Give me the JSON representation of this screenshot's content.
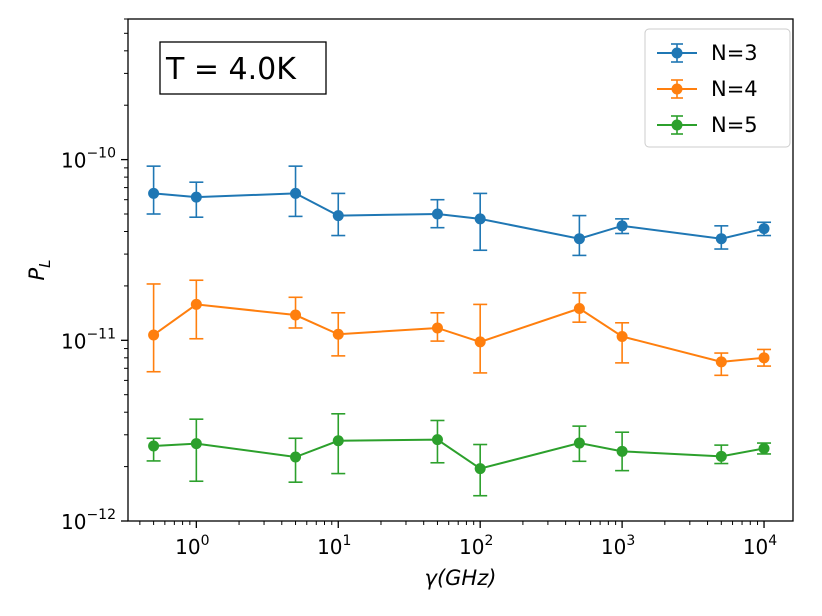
{
  "chart_data": {
    "type": "line",
    "title": "",
    "annotation": "T = 4.0K",
    "xlabel": "γ(GHz)",
    "ylabel": "P_L",
    "xscale": "log",
    "yscale": "log",
    "xlim": [
      0.33,
      16000
    ],
    "ylim": [
      1e-12,
      6e-10
    ],
    "x_ticks": [
      {
        "value": 1,
        "base": "10",
        "exp": "0"
      },
      {
        "value": 10,
        "base": "10",
        "exp": "1"
      },
      {
        "value": 100,
        "base": "10",
        "exp": "2"
      },
      {
        "value": 1000,
        "base": "10",
        "exp": "3"
      },
      {
        "value": 10000,
        "base": "10",
        "exp": "4"
      }
    ],
    "y_ticks": [
      {
        "value": 1e-12,
        "base": "10",
        "exp": "−12"
      },
      {
        "value": 1e-11,
        "base": "10",
        "exp": "−11"
      },
      {
        "value": 1e-10,
        "base": "10",
        "exp": "−10"
      }
    ],
    "legend_position": "top-right",
    "x": [
      0.5,
      1,
      5,
      10,
      50,
      100,
      500,
      1000,
      5000,
      10000
    ],
    "series": [
      {
        "name": "N=3",
        "color": "#1f77b4",
        "values": [
          6.5e-11,
          6.2e-11,
          6.5e-11,
          4.9e-11,
          5e-11,
          4.7e-11,
          3.65e-11,
          4.3e-11,
          3.65e-11,
          4.15e-11
        ],
        "err_low": [
          5e-11,
          4.8e-11,
          4.85e-11,
          3.8e-11,
          4.2e-11,
          3.15e-11,
          2.95e-11,
          3.9e-11,
          3.2e-11,
          3.8e-11
        ],
        "err_high": [
          9.2e-11,
          7.5e-11,
          9.2e-11,
          6.5e-11,
          6e-11,
          6.5e-11,
          4.9e-11,
          4.7e-11,
          4.3e-11,
          4.5e-11
        ]
      },
      {
        "name": "N=4",
        "color": "#ff7f0e",
        "values": [
          1.07e-11,
          1.58e-11,
          1.38e-11,
          1.08e-11,
          1.17e-11,
          9.8e-12,
          1.5e-11,
          1.05e-11,
          7.6e-12,
          8e-12
        ],
        "err_low": [
          6.7e-12,
          1.02e-11,
          1.17e-11,
          8.2e-12,
          9.9e-12,
          6.6e-12,
          1.26e-11,
          7.5e-12,
          6.4e-12,
          7.2e-12
        ],
        "err_high": [
          2.05e-11,
          2.15e-11,
          1.73e-11,
          1.42e-11,
          1.42e-11,
          1.58e-11,
          1.83e-11,
          1.25e-11,
          8.5e-12,
          8.9e-12
        ]
      },
      {
        "name": "N=5",
        "color": "#2ca02c",
        "values": [
          2.6e-12,
          2.68e-12,
          2.26e-12,
          2.78e-12,
          2.82e-12,
          1.95e-12,
          2.7e-12,
          2.43e-12,
          2.28e-12,
          2.52e-12
        ],
        "err_low": [
          2.15e-12,
          1.66e-12,
          1.64e-12,
          1.83e-12,
          2.1e-12,
          1.38e-12,
          2.14e-12,
          1.9e-12,
          2.08e-12,
          2.35e-12
        ],
        "err_high": [
          2.87e-12,
          3.66e-12,
          2.87e-12,
          3.92e-12,
          3.6e-12,
          2.65e-12,
          3.35e-12,
          3.1e-12,
          2.63e-12,
          2.7e-12
        ]
      }
    ]
  }
}
